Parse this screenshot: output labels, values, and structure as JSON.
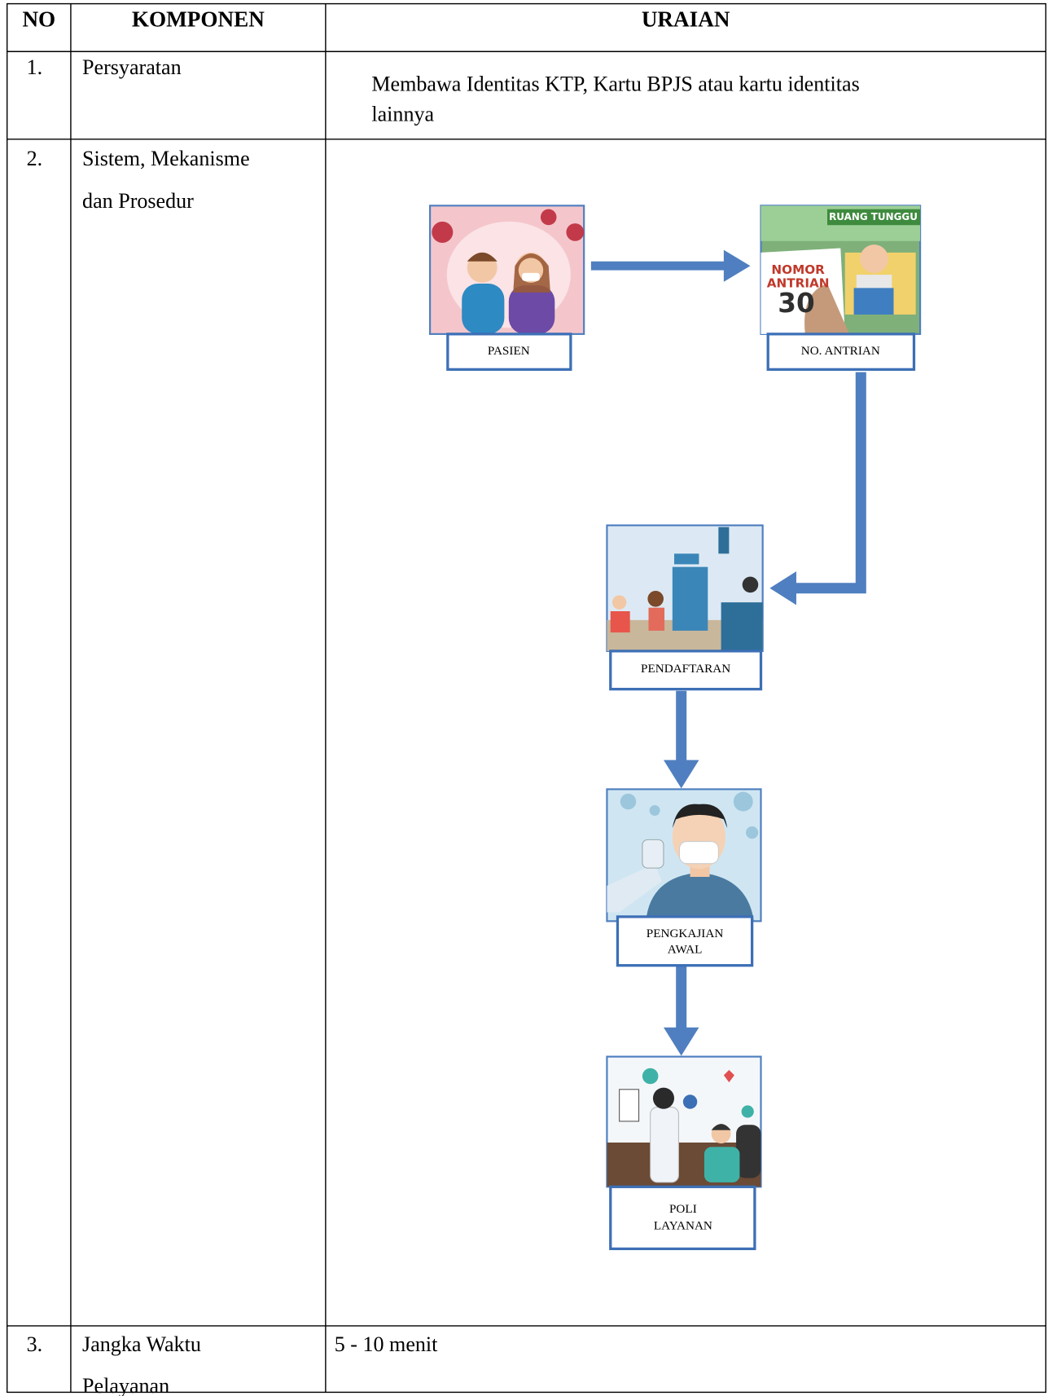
{
  "table": {
    "header": [
      "NO",
      "KOMPONEN",
      "URAIAN"
    ],
    "rows": [
      {
        "no": "1.",
        "komponen": [
          "Persyaratan"
        ],
        "uraian": [
          "Membawa Identitas KTP, Kartu BPJS atau kartu identitas",
          "lainnya"
        ]
      },
      {
        "no": "2.",
        "komponen": [
          "Sistem, Mekanisme",
          "dan Prosedur"
        ]
      },
      {
        "no": "3.",
        "komponen": [
          "Jangka Waktu",
          "Pelayanan"
        ],
        "uraian": [
          "5 - 10 menit"
        ]
      }
    ]
  },
  "diagram": {
    "nodes": [
      {
        "label": [
          "PASIEN"
        ]
      },
      {
        "label": [
          "NO. ANTRIAN"
        ],
        "image_text": [
          "RUANG TUNGGU",
          "NOMOR",
          "ANTRIAN",
          "30"
        ]
      },
      {
        "label": [
          "PENDAFTARAN"
        ]
      },
      {
        "label": [
          "PENGKAJIAN",
          "AWAL"
        ]
      },
      {
        "label": [
          "POLI",
          "LAYANAN"
        ]
      }
    ]
  }
}
